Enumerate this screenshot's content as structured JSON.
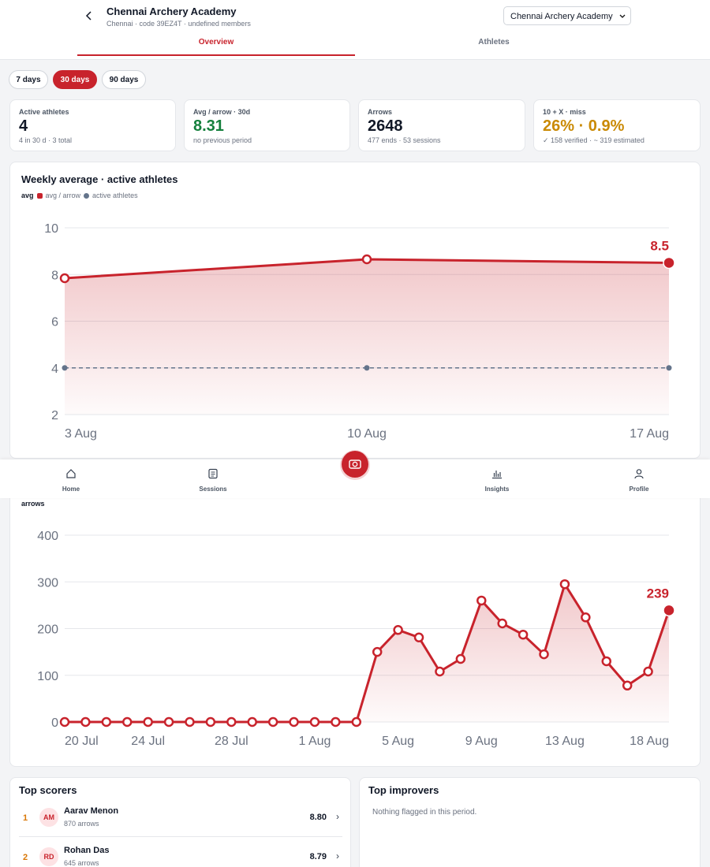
{
  "header": {
    "title": "Chennai Archery Academy",
    "subtitle": "Chennai · code 39EZ4T · undefined members",
    "select": "Chennai Archery Academy"
  },
  "tabs": [
    "Overview",
    "Athletes"
  ],
  "ranges": [
    "7 days",
    "30 days",
    "90 days"
  ],
  "stats": [
    {
      "label": "Active athletes",
      "value": "4",
      "note": "4 in 30 d · 3 total"
    },
    {
      "label": "Avg / arrow · 30d",
      "value": "8.31",
      "note": "no previous period"
    },
    {
      "label": "Arrows",
      "value": "2648",
      "note": "477 ends · 53 sessions"
    },
    {
      "label": "10 + X · miss",
      "value": "26% · 0.9%",
      "note": "✓ 158 verified · ~ 319 estimated"
    }
  ],
  "chart_data": [
    {
      "type": "line",
      "title": "Weekly average · active athletes",
      "legend_title": "avg",
      "categories": [
        "3 Aug",
        "10 Aug",
        "17 Aug"
      ],
      "series": [
        {
          "name": "avg / arrow",
          "color": "#c8232c",
          "values": [
            7.84,
            8.65,
            8.5
          ],
          "fill": true
        },
        {
          "name": "active athletes",
          "color": "#64748b",
          "values": [
            4,
            4,
            4
          ],
          "dashed": true
        }
      ],
      "ylim": [
        2,
        10
      ],
      "yticks": [
        2,
        4,
        6,
        8,
        10
      ],
      "grid": true
    },
    {
      "type": "line",
      "legend_title": "arrows",
      "categories": [
        "20 Jul",
        null,
        null,
        null,
        "24 Jul",
        null,
        null,
        null,
        "28 Jul",
        null,
        null,
        null,
        "1 Aug",
        null,
        null,
        null,
        "5 Aug",
        null,
        null,
        null,
        "9 Aug",
        null,
        null,
        null,
        "13 Aug",
        null,
        null,
        null,
        null,
        "18 Aug"
      ],
      "series": [
        {
          "color": "#c8232c",
          "fill": true,
          "values": [
            0,
            0,
            0,
            0,
            0,
            0,
            0,
            0,
            0,
            0,
            0,
            0,
            0,
            0,
            0,
            150,
            197,
            181,
            108,
            135,
            260,
            211,
            187,
            145,
            295,
            224,
            130,
            78,
            108,
            239
          ]
        }
      ],
      "ylim": [
        0,
        400
      ],
      "yticks": [
        0,
        100,
        200,
        300,
        400
      ],
      "grid": true
    }
  ],
  "top_scorers": {
    "title": "Top scorers",
    "rows": [
      {
        "rank": "1",
        "initials": "AM",
        "name": "Aarav Menon",
        "note": "870 arrows",
        "score": "8.80"
      },
      {
        "rank": "2",
        "initials": "RD",
        "name": "Rohan Das",
        "note": "645 arrows",
        "score": "8.79"
      }
    ]
  },
  "top_improvers": {
    "title": "Top improvers",
    "empty": "Nothing flagged in this period."
  },
  "nav": [
    "Home",
    "Sessions",
    "Insights",
    "Profile"
  ]
}
